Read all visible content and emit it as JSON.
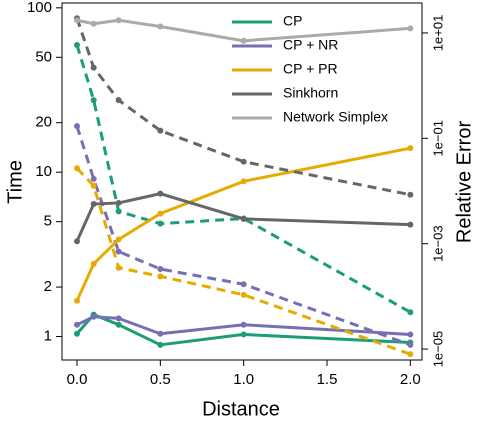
{
  "chart_data": {
    "type": "line",
    "xlabel": "Distance",
    "ylabel": "Time",
    "y2label": "Relative Error",
    "x": [
      0,
      0.1,
      0.25,
      0.5,
      1.0,
      2.0
    ],
    "xlim": [
      -0.09,
      2.07
    ],
    "xticks": [
      {
        "value": 0,
        "label": "0.0"
      },
      0.5,
      {
        "value": 1,
        "label": "1.0"
      },
      1.5,
      {
        "value": 2,
        "label": "2.0"
      }
    ],
    "ylim": [
      0.72,
      107
    ],
    "ylog": true,
    "yticks": [
      1,
      2,
      5,
      10,
      20,
      50,
      100
    ],
    "y2lim": [
      6.2e-06,
      37
    ],
    "y2log": true,
    "y2ticks": [
      {
        "value": 10,
        "label": "1e+01"
      },
      {
        "value": 0.1,
        "label": "1e−01"
      },
      {
        "value": 0.001,
        "label": "1e−03"
      },
      {
        "value": 1e-05,
        "label": "1e−05"
      }
    ],
    "legend": "top",
    "series": [
      {
        "name": "CP",
        "color": "#1b9e77",
        "values": [
          1.04,
          1.36,
          1.18,
          0.89,
          1.03,
          0.92
        ],
        "error_values": [
          5.9,
          0.53,
          0.0041,
          0.0024,
          0.003,
          5e-05
        ]
      },
      {
        "name": "CP + NR",
        "color": "#7570b3",
        "values": [
          1.18,
          1.32,
          1.29,
          1.04,
          1.18,
          1.03
        ],
        "error_values": [
          0.17,
          0.017,
          0.00071,
          0.00033,
          0.00017,
          1.2e-05
        ]
      },
      {
        "name": "CP + PR",
        "color": "#e6ab02",
        "values": [
          1.65,
          2.77,
          3.9,
          5.6,
          8.8,
          14.0
        ],
        "error_values": [
          0.027,
          0.0126,
          0.00035,
          0.00024,
          0.000107,
          8e-06
        ]
      },
      {
        "name": "Sinkhorn",
        "color": "#666666",
        "values": [
          3.8,
          6.4,
          6.5,
          7.4,
          5.2,
          4.8
        ],
        "error_values": [
          19,
          2.2,
          0.53,
          0.14,
          0.036,
          0.0085
        ]
      },
      {
        "name": "Network Simplex",
        "color": "#aaaaaa",
        "values": [
          84,
          80,
          84,
          77,
          63,
          75
        ]
      }
    ]
  }
}
